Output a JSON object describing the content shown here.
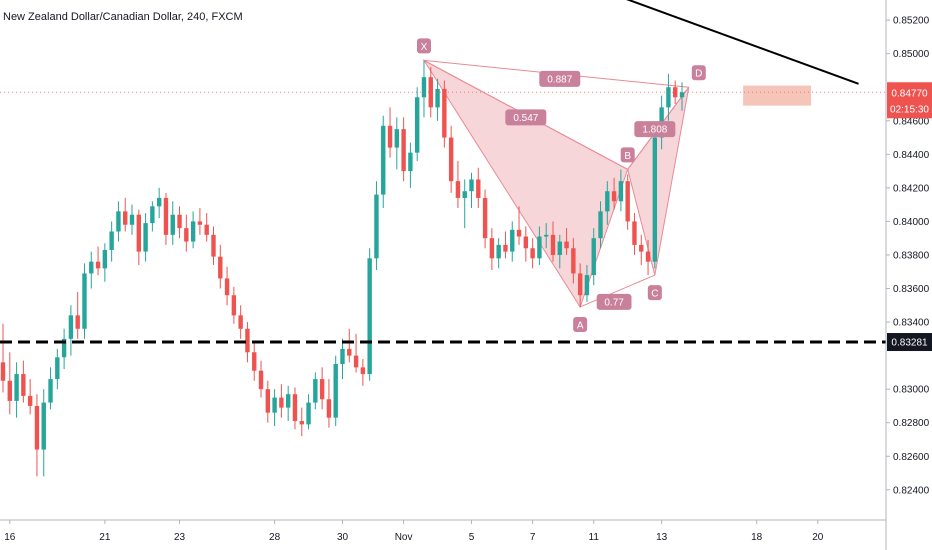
{
  "chart_data": {
    "type": "candlestick",
    "title": "New Zealand Dollar/Canadian Dollar, 240, FXCM",
    "ylim": [
      0.8222,
      0.8532
    ],
    "y_ticks": [
      "0.85200",
      "0.85000",
      "0.84600",
      "0.84400",
      "0.84200",
      "0.84000",
      "0.83800",
      "0.83600",
      "0.83400",
      "0.83000",
      "0.82800",
      "0.82600",
      "0.82400"
    ],
    "x_ticks": [
      {
        "label": "16",
        "bar": 1
      },
      {
        "label": "21",
        "bar": 15
      },
      {
        "label": "23",
        "bar": 26
      },
      {
        "label": "28",
        "bar": 40
      },
      {
        "label": "30",
        "bar": 50
      },
      {
        "label": "Nov",
        "bar": 59
      },
      {
        "label": "5",
        "bar": 69
      },
      {
        "label": "7",
        "bar": 78
      },
      {
        "label": "11",
        "bar": 87
      },
      {
        "label": "13",
        "bar": 97
      },
      {
        "label": "18",
        "bar": 111
      },
      {
        "label": "20",
        "bar": 120
      }
    ],
    "current_price": {
      "label": "0.84770",
      "countdown": "02:15:30",
      "value": 0.8477
    },
    "support_level": {
      "label": "0.83281",
      "value": 0.83281
    },
    "pattern": {
      "points": [
        {
          "label": "X",
          "bar": 62,
          "price": 0.8496
        },
        {
          "label": "A",
          "bar": 85,
          "price": 0.8349
        },
        {
          "label": "B",
          "bar": 92,
          "price": 0.8431
        },
        {
          "label": "C",
          "bar": 96,
          "price": 0.8368
        },
        {
          "label": "D",
          "bar": 101,
          "price": 0.848
        }
      ],
      "ratios": [
        {
          "label": "0.887",
          "bar": 82,
          "price": 0.8485
        },
        {
          "label": "0.547",
          "bar": 77,
          "price": 0.8462
        },
        {
          "label": "1.808",
          "bar": 96,
          "price": 0.8455
        },
        {
          "label": "0.77",
          "bar": 90,
          "price": 0.8352
        }
      ]
    },
    "trendline": {
      "from": {
        "bar": 78,
        "price": 0.8553
      },
      "to": {
        "bar": 126,
        "price": 0.8482
      }
    },
    "target_zone": {
      "bar_start": 109,
      "bar_end": 119,
      "price_top": 0.8481,
      "price_bottom": 0.8469
    },
    "series": [
      {
        "values": [
          [
            0.8316,
            0.8339,
            0.8298,
            0.8305
          ],
          [
            0.8305,
            0.8322,
            0.8285,
            0.8293
          ],
          [
            0.8293,
            0.8316,
            0.8283,
            0.8309
          ],
          [
            0.8309,
            0.8317,
            0.8292,
            0.8296
          ],
          [
            0.8296,
            0.8306,
            0.8285,
            0.829
          ],
          [
            0.829,
            0.8297,
            0.8248,
            0.8264
          ],
          [
            0.8264,
            0.83,
            0.8248,
            0.8292
          ],
          [
            0.8292,
            0.8313,
            0.8288,
            0.8306
          ],
          [
            0.8306,
            0.8324,
            0.83,
            0.8319
          ],
          [
            0.8319,
            0.8336,
            0.8312,
            0.833
          ],
          [
            0.833,
            0.835,
            0.832,
            0.8344
          ],
          [
            0.8344,
            0.8358,
            0.833,
            0.8336
          ],
          [
            0.8336,
            0.8375,
            0.833,
            0.8369
          ],
          [
            0.8369,
            0.8382,
            0.836,
            0.8376
          ],
          [
            0.8376,
            0.8385,
            0.8368,
            0.8372
          ],
          [
            0.8372,
            0.8387,
            0.8364,
            0.8383
          ],
          [
            0.8383,
            0.84,
            0.8376,
            0.8394
          ],
          [
            0.8394,
            0.8412,
            0.8388,
            0.8406
          ],
          [
            0.8406,
            0.8414,
            0.8394,
            0.8398
          ],
          [
            0.8398,
            0.841,
            0.8392,
            0.8404
          ],
          [
            0.8404,
            0.8407,
            0.8374,
            0.8382
          ],
          [
            0.8382,
            0.8405,
            0.8376,
            0.8399
          ],
          [
            0.8399,
            0.8412,
            0.8394,
            0.8409
          ],
          [
            0.8409,
            0.842,
            0.8402,
            0.8414
          ],
          [
            0.8414,
            0.8417,
            0.8386,
            0.8392
          ],
          [
            0.8392,
            0.8412,
            0.8386,
            0.8404
          ],
          [
            0.8404,
            0.8409,
            0.839,
            0.8396
          ],
          [
            0.8396,
            0.8404,
            0.8382,
            0.8388
          ],
          [
            0.8388,
            0.8406,
            0.8384,
            0.84
          ],
          [
            0.84,
            0.8408,
            0.8392,
            0.8398
          ],
          [
            0.8398,
            0.8405,
            0.8388,
            0.8392
          ],
          [
            0.8392,
            0.8397,
            0.8374,
            0.8379
          ],
          [
            0.8379,
            0.8386,
            0.836,
            0.8366
          ],
          [
            0.8366,
            0.8373,
            0.835,
            0.8356
          ],
          [
            0.8356,
            0.8361,
            0.8339,
            0.8344
          ],
          [
            0.8344,
            0.835,
            0.833,
            0.8336
          ],
          [
            0.8336,
            0.834,
            0.8316,
            0.8322
          ],
          [
            0.8322,
            0.8328,
            0.8305,
            0.8311
          ],
          [
            0.8311,
            0.8317,
            0.8295,
            0.83
          ],
          [
            0.83,
            0.8305,
            0.828,
            0.8286
          ],
          [
            0.8286,
            0.83,
            0.8278,
            0.8295
          ],
          [
            0.8295,
            0.8303,
            0.8283,
            0.8289
          ],
          [
            0.8289,
            0.8302,
            0.8281,
            0.8297
          ],
          [
            0.8297,
            0.8301,
            0.8276,
            0.8281
          ],
          [
            0.8281,
            0.8289,
            0.8272,
            0.8279
          ],
          [
            0.8279,
            0.8297,
            0.8276,
            0.8292
          ],
          [
            0.8292,
            0.831,
            0.8288,
            0.8306
          ],
          [
            0.8306,
            0.8313,
            0.8288,
            0.8294
          ],
          [
            0.8294,
            0.8306,
            0.8277,
            0.8283
          ],
          [
            0.8283,
            0.832,
            0.8278,
            0.8315
          ],
          [
            0.8315,
            0.833,
            0.8306,
            0.8324
          ],
          [
            0.8324,
            0.8336,
            0.8316,
            0.832
          ],
          [
            0.832,
            0.8333,
            0.831,
            0.8313
          ],
          [
            0.8313,
            0.8318,
            0.8302,
            0.8309
          ],
          [
            0.8309,
            0.8384,
            0.8305,
            0.8378
          ],
          [
            0.8378,
            0.8424,
            0.8371,
            0.8416
          ],
          [
            0.8416,
            0.8463,
            0.8408,
            0.8457
          ],
          [
            0.8457,
            0.8468,
            0.8438,
            0.8444
          ],
          [
            0.8444,
            0.8462,
            0.8431,
            0.8455
          ],
          [
            0.8455,
            0.8462,
            0.8424,
            0.843
          ],
          [
            0.843,
            0.8447,
            0.842,
            0.8441
          ],
          [
            0.8441,
            0.848,
            0.8436,
            0.8474
          ],
          [
            0.8474,
            0.8496,
            0.8462,
            0.8486
          ],
          [
            0.8486,
            0.8492,
            0.8462,
            0.8468
          ],
          [
            0.8468,
            0.8485,
            0.846,
            0.8479
          ],
          [
            0.8479,
            0.8484,
            0.8444,
            0.845
          ],
          [
            0.845,
            0.8457,
            0.8417,
            0.8424
          ],
          [
            0.8424,
            0.8436,
            0.8408,
            0.8414
          ],
          [
            0.8414,
            0.8425,
            0.8396,
            0.8418
          ],
          [
            0.8418,
            0.8429,
            0.8408,
            0.8425
          ],
          [
            0.8425,
            0.8432,
            0.8408,
            0.8414
          ],
          [
            0.8414,
            0.8419,
            0.8384,
            0.839
          ],
          [
            0.839,
            0.8396,
            0.8371,
            0.8378
          ],
          [
            0.8378,
            0.839,
            0.8372,
            0.8386
          ],
          [
            0.8386,
            0.8394,
            0.8378,
            0.8382
          ],
          [
            0.8382,
            0.84,
            0.8376,
            0.8395
          ],
          [
            0.8395,
            0.8409,
            0.8386,
            0.8391
          ],
          [
            0.8391,
            0.8397,
            0.8376,
            0.8384
          ],
          [
            0.8384,
            0.839,
            0.8372,
            0.8378
          ],
          [
            0.8378,
            0.8397,
            0.8374,
            0.8391
          ],
          [
            0.8391,
            0.8399,
            0.8384,
            0.8392
          ],
          [
            0.8392,
            0.84,
            0.8376,
            0.838
          ],
          [
            0.838,
            0.8392,
            0.8372,
            0.8388
          ],
          [
            0.8388,
            0.8396,
            0.838,
            0.8384
          ],
          [
            0.8384,
            0.839,
            0.8363,
            0.8369
          ],
          [
            0.8369,
            0.8375,
            0.8349,
            0.8356
          ],
          [
            0.8356,
            0.8374,
            0.8352,
            0.8368
          ],
          [
            0.8368,
            0.8396,
            0.8362,
            0.839
          ],
          [
            0.839,
            0.8412,
            0.8384,
            0.8406
          ],
          [
            0.8406,
            0.8424,
            0.8398,
            0.8418
          ],
          [
            0.8418,
            0.8426,
            0.8407,
            0.8412
          ],
          [
            0.8412,
            0.8431,
            0.8406,
            0.8424
          ],
          [
            0.8424,
            0.8428,
            0.8395,
            0.84
          ],
          [
            0.84,
            0.8405,
            0.838,
            0.8386
          ],
          [
            0.8386,
            0.8392,
            0.8374,
            0.8382
          ],
          [
            0.8382,
            0.8389,
            0.8368,
            0.8376
          ],
          [
            0.8376,
            0.8455,
            0.8372,
            0.845
          ],
          [
            0.845,
            0.8475,
            0.8443,
            0.8468
          ],
          [
            0.8468,
            0.8488,
            0.846,
            0.848
          ],
          [
            0.848,
            0.8484,
            0.847,
            0.8474
          ],
          [
            0.8474,
            0.8483,
            0.8466,
            0.8477
          ]
        ]
      }
    ]
  },
  "colors": {
    "up": "#26a69a",
    "down": "#ef5350",
    "pattern_fill": "#f6cfd3",
    "pattern_stroke": "#e88a95",
    "label_bg": "#c9809a",
    "price_tag": "#ef5350",
    "support_tag": "#131722",
    "target_zone": "#f4b6a8"
  }
}
